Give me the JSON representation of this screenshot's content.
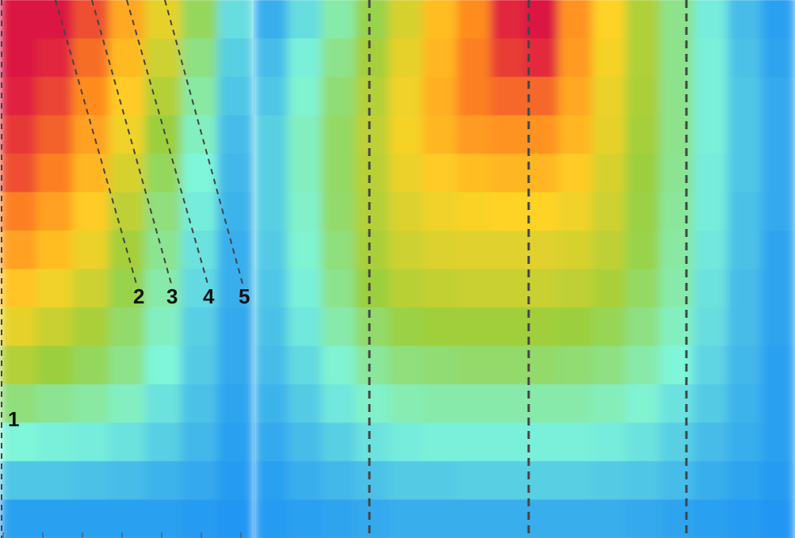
{
  "chart_data": {
    "type": "heatmap",
    "title": "",
    "xlabel": "",
    "ylabel": "",
    "colormap": [
      "#2196f3",
      "#7ff5d9",
      "#9bcf3c",
      "#ffd226",
      "#ff8c1f",
      "#dc1443"
    ],
    "panels": [
      {
        "name": "left-panel",
        "rows": [
          [
            1.0,
            1.0,
            0.9,
            0.72,
            0.55,
            0.36,
            0.15
          ],
          [
            1.0,
            0.97,
            0.85,
            0.67,
            0.5,
            0.31,
            0.12
          ],
          [
            0.98,
            0.92,
            0.8,
            0.62,
            0.45,
            0.27,
            0.1
          ],
          [
            0.94,
            0.87,
            0.74,
            0.57,
            0.4,
            0.23,
            0.08
          ],
          [
            0.9,
            0.82,
            0.68,
            0.52,
            0.36,
            0.2,
            0.07
          ],
          [
            0.82,
            0.74,
            0.62,
            0.47,
            0.32,
            0.18,
            0.06
          ],
          [
            0.74,
            0.66,
            0.56,
            0.42,
            0.29,
            0.16,
            0.05
          ],
          [
            0.64,
            0.57,
            0.5,
            0.38,
            0.26,
            0.14,
            0.05
          ],
          [
            0.55,
            0.49,
            0.43,
            0.34,
            0.23,
            0.12,
            0.04
          ],
          [
            0.45,
            0.4,
            0.36,
            0.3,
            0.2,
            0.11,
            0.04
          ],
          [
            0.32,
            0.29,
            0.27,
            0.23,
            0.16,
            0.09,
            0.03
          ],
          [
            0.2,
            0.19,
            0.18,
            0.16,
            0.12,
            0.07,
            0.02
          ],
          [
            0.1,
            0.1,
            0.09,
            0.08,
            0.06,
            0.04,
            0.01
          ],
          [
            0.02,
            0.02,
            0.02,
            0.02,
            0.02,
            0.01,
            0.0
          ]
        ]
      },
      {
        "name": "right-panel",
        "rows": [
          [
            0.05,
            0.15,
            0.26,
            0.38,
            0.52,
            0.66,
            0.8,
            0.97,
            1.0,
            0.78,
            0.6,
            0.44,
            0.3,
            0.18,
            0.08,
            0.02
          ],
          [
            0.08,
            0.19,
            0.3,
            0.42,
            0.55,
            0.68,
            0.82,
            0.93,
            0.96,
            0.76,
            0.58,
            0.44,
            0.3,
            0.19,
            0.09,
            0.03
          ],
          [
            0.1,
            0.21,
            0.33,
            0.45,
            0.57,
            0.7,
            0.82,
            0.86,
            0.86,
            0.72,
            0.56,
            0.43,
            0.3,
            0.19,
            0.1,
            0.04
          ],
          [
            0.12,
            0.23,
            0.35,
            0.47,
            0.58,
            0.68,
            0.76,
            0.78,
            0.78,
            0.68,
            0.55,
            0.42,
            0.3,
            0.19,
            0.1,
            0.04
          ],
          [
            0.12,
            0.23,
            0.35,
            0.46,
            0.56,
            0.62,
            0.66,
            0.68,
            0.68,
            0.62,
            0.52,
            0.4,
            0.29,
            0.18,
            0.1,
            0.04
          ],
          [
            0.12,
            0.22,
            0.34,
            0.45,
            0.53,
            0.57,
            0.59,
            0.6,
            0.6,
            0.57,
            0.5,
            0.39,
            0.28,
            0.18,
            0.09,
            0.04
          ],
          [
            0.11,
            0.21,
            0.32,
            0.43,
            0.5,
            0.53,
            0.54,
            0.54,
            0.54,
            0.52,
            0.47,
            0.38,
            0.27,
            0.17,
            0.09,
            0.03
          ],
          [
            0.1,
            0.19,
            0.3,
            0.4,
            0.46,
            0.48,
            0.49,
            0.49,
            0.49,
            0.47,
            0.43,
            0.35,
            0.26,
            0.16,
            0.08,
            0.03
          ],
          [
            0.09,
            0.17,
            0.26,
            0.34,
            0.39,
            0.41,
            0.41,
            0.41,
            0.41,
            0.4,
            0.37,
            0.31,
            0.23,
            0.15,
            0.08,
            0.03
          ],
          [
            0.08,
            0.14,
            0.21,
            0.28,
            0.32,
            0.33,
            0.34,
            0.34,
            0.34,
            0.33,
            0.31,
            0.26,
            0.2,
            0.13,
            0.07,
            0.02
          ],
          [
            0.06,
            0.11,
            0.17,
            0.22,
            0.25,
            0.26,
            0.26,
            0.26,
            0.26,
            0.26,
            0.24,
            0.21,
            0.16,
            0.11,
            0.06,
            0.02
          ],
          [
            0.04,
            0.08,
            0.12,
            0.16,
            0.18,
            0.19,
            0.19,
            0.19,
            0.19,
            0.19,
            0.18,
            0.16,
            0.12,
            0.08,
            0.05,
            0.02
          ],
          [
            0.02,
            0.05,
            0.07,
            0.09,
            0.11,
            0.11,
            0.12,
            0.12,
            0.12,
            0.12,
            0.11,
            0.1,
            0.08,
            0.05,
            0.03,
            0.01
          ],
          [
            0.01,
            0.02,
            0.03,
            0.04,
            0.05,
            0.05,
            0.05,
            0.05,
            0.05,
            0.05,
            0.05,
            0.04,
            0.03,
            0.02,
            0.01,
            0.0
          ]
        ]
      }
    ],
    "annotations": [
      {
        "label": "1"
      },
      {
        "label": "2"
      },
      {
        "label": "3"
      },
      {
        "label": "4"
      },
      {
        "label": "5"
      }
    ],
    "grid": false,
    "legend": "none"
  }
}
